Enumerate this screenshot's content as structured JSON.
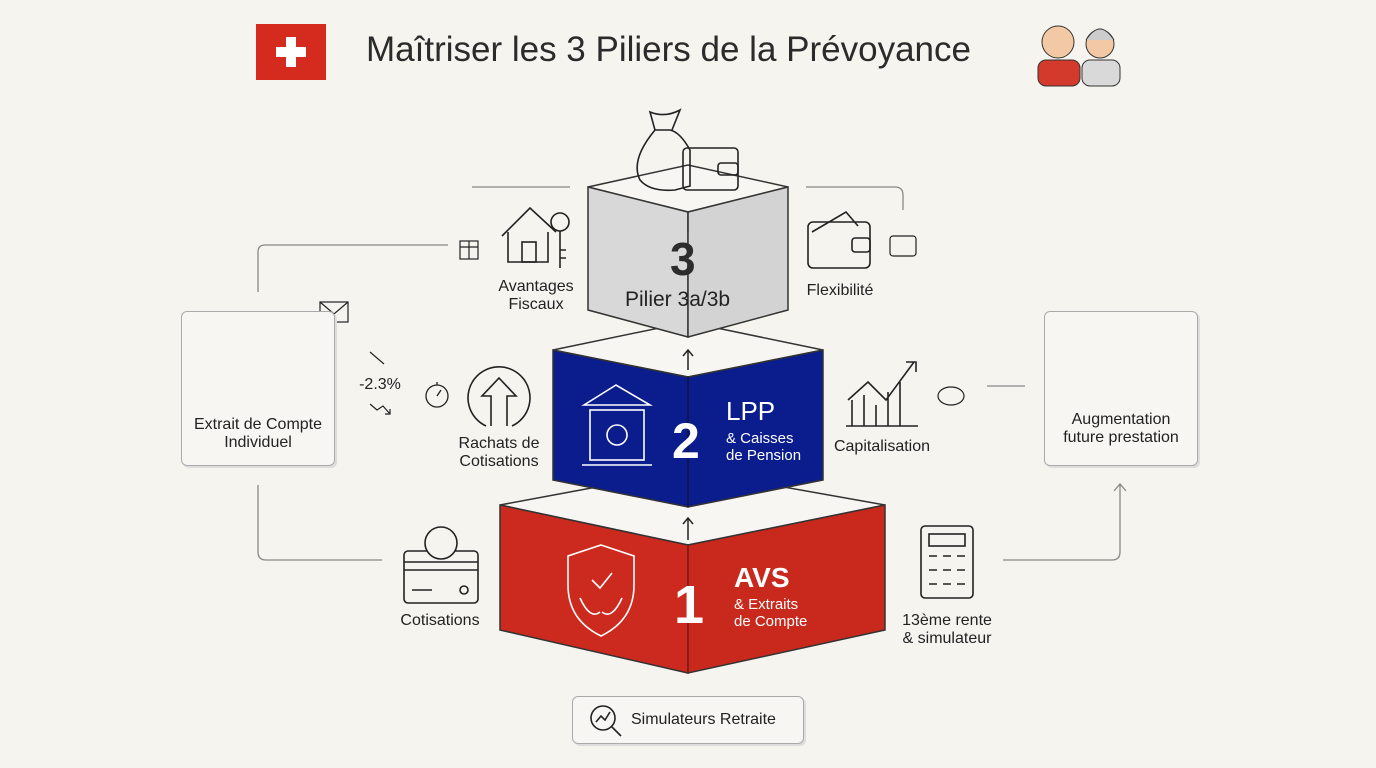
{
  "title": "Maîtriser les 3 Piliers de la Prévoyance",
  "colors": {
    "swiss_red": "#d52b1e",
    "pillar1": "#cc2a1f",
    "pillar2": "#0b1c8c",
    "pillar3": "#d8d8d8",
    "background": "#f5f4ef"
  },
  "pillars": [
    {
      "number": "1",
      "name": "AVS",
      "sub1": "& Extraits",
      "sub2": "de Compte",
      "icon": "shield-hands-icon"
    },
    {
      "number": "2",
      "name": "LPP",
      "sub1": "& Caisses",
      "sub2": "de Pension",
      "icon": "bank-safe-icon"
    },
    {
      "number": "3",
      "name": "Pilier 3a/3b",
      "icon": "money-bag-wallet-icon"
    }
  ],
  "labels": {
    "avantages_fiscaux": [
      "Avantages",
      "Fiscaux"
    ],
    "flexibilite": "Flexibilité",
    "extrait": [
      "Extrait de Compte",
      "Individuel"
    ],
    "percent": "-2.3%",
    "rachats": [
      "Rachats de",
      "Cotisations"
    ],
    "capitalisation": "Capitalisation",
    "augmentation": [
      "Augmentation",
      "future prestation"
    ],
    "cotisations": "Cotisations",
    "rente": [
      "13ème rente",
      "& simulateur"
    ]
  },
  "button": {
    "label": "Simulateurs Retraite",
    "icon": "search-chart-icon"
  }
}
